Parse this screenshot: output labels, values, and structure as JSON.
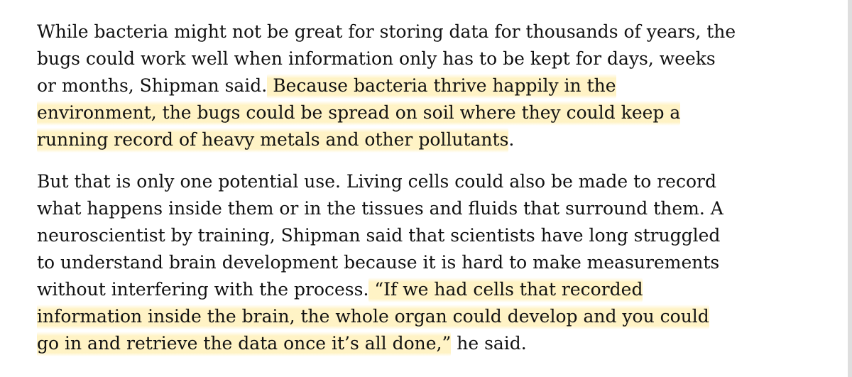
{
  "paragraphs": [
    {
      "lines": [
        {
          "plain": "While bacteria might not be great for storing data for thousands of years, the",
          "highlight": ""
        },
        {
          "plain": "bugs could work well when information only has to be kept for days, weeks",
          "highlight": ""
        },
        {
          "plain": "or months, Shipman said.",
          "highlight": " Because bacteria thrive happily in the"
        },
        {
          "plain": "",
          "highlight": "environment, the bugs could be spread on soil where they could keep a"
        },
        {
          "plain": "",
          "highlight": "running record of heavy metals and other pollutants",
          "after": "."
        }
      ]
    },
    {
      "lines": [
        {
          "plain": "But that is only one potential use. Living cells could also be made to record",
          "highlight": ""
        },
        {
          "plain": "what happens inside them or in the tissues and fluids that surround them. A",
          "highlight": ""
        },
        {
          "plain": "neuroscientist by training, Shipman said that scientists have long struggled",
          "highlight": ""
        },
        {
          "plain": "to understand brain development because it is hard to make measurements",
          "highlight": ""
        },
        {
          "plain": "without interfering with the process.",
          "highlight": " “If we had cells that recorded"
        },
        {
          "plain": "",
          "highlight": "information inside the brain, the whole organ could develop and you could"
        },
        {
          "plain": "",
          "highlight": "go in and retrieve the data once it’s all done,”",
          "after": " he said."
        }
      ]
    }
  ],
  "highlight_color": "#ffe996"
}
